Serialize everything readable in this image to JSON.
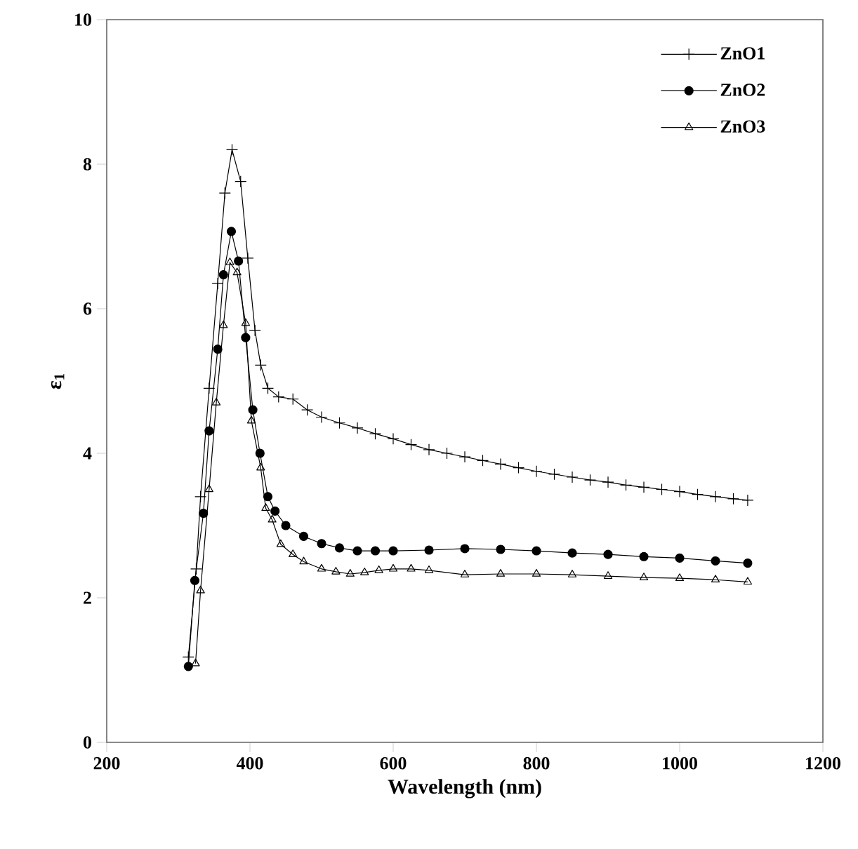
{
  "chart_data": {
    "type": "line",
    "xlabel": "Wavelength (nm)",
    "ylabel": "ε$_{1}$",
    "xlim": [
      200,
      1200
    ],
    "ylim": [
      0,
      10
    ],
    "xticks": [
      200,
      400,
      600,
      800,
      1000,
      1200
    ],
    "yticks": [
      0,
      2,
      4,
      6,
      8,
      10
    ],
    "legend": "top right",
    "grid": false,
    "series": [
      {
        "name": "ZnO1",
        "color": "#000000",
        "marker": "cross",
        "x": [
          314,
          325,
          331,
          343,
          355,
          365,
          375,
          387,
          397,
          407,
          415,
          425,
          440,
          460,
          480,
          500,
          525,
          550,
          575,
          600,
          625,
          650,
          675,
          700,
          725,
          750,
          775,
          800,
          825,
          850,
          875,
          900,
          925,
          950,
          975,
          1000,
          1025,
          1050,
          1075,
          1095
        ],
        "values": [
          1.18,
          2.4,
          3.4,
          4.9,
          6.35,
          7.6,
          8.2,
          7.76,
          6.7,
          5.7,
          5.22,
          4.9,
          4.78,
          4.75,
          4.6,
          4.5,
          4.42,
          4.35,
          4.27,
          4.2,
          4.12,
          4.05,
          4.0,
          3.95,
          3.9,
          3.85,
          3.8,
          3.75,
          3.71,
          3.67,
          3.63,
          3.6,
          3.56,
          3.53,
          3.5,
          3.47,
          3.43,
          3.4,
          3.37,
          3.35
        ]
      },
      {
        "name": "ZnO2",
        "color": "#000000",
        "marker": "circle",
        "x": [
          314,
          323,
          335,
          343,
          355,
          363,
          374,
          384,
          394,
          404,
          414,
          425,
          435,
          450,
          475,
          500,
          525,
          550,
          575,
          600,
          650,
          700,
          750,
          800,
          850,
          900,
          950,
          1000,
          1050,
          1095
        ],
        "values": [
          1.05,
          2.24,
          3.17,
          4.31,
          5.44,
          6.47,
          7.07,
          6.66,
          5.6,
          4.6,
          4.0,
          3.4,
          3.2,
          3.0,
          2.85,
          2.75,
          2.69,
          2.65,
          2.65,
          2.65,
          2.66,
          2.68,
          2.67,
          2.65,
          2.62,
          2.6,
          2.57,
          2.55,
          2.51,
          2.48
        ]
      },
      {
        "name": "ZnO3",
        "color": "#000000",
        "marker": "triangle",
        "x": [
          324,
          331,
          343,
          353,
          363,
          372,
          382,
          394,
          402,
          415,
          422,
          431,
          443,
          460,
          475,
          500,
          520,
          540,
          560,
          580,
          600,
          625,
          650,
          700,
          750,
          800,
          850,
          900,
          950,
          1000,
          1050,
          1095
        ],
        "values": [
          1.09,
          2.1,
          3.5,
          4.7,
          5.77,
          6.64,
          6.5,
          5.8,
          4.45,
          3.8,
          3.24,
          3.08,
          2.74,
          2.6,
          2.5,
          2.4,
          2.36,
          2.33,
          2.35,
          2.38,
          2.4,
          2.4,
          2.38,
          2.32,
          2.33,
          2.33,
          2.32,
          2.3,
          2.28,
          2.27,
          2.25,
          2.22
        ]
      }
    ]
  }
}
